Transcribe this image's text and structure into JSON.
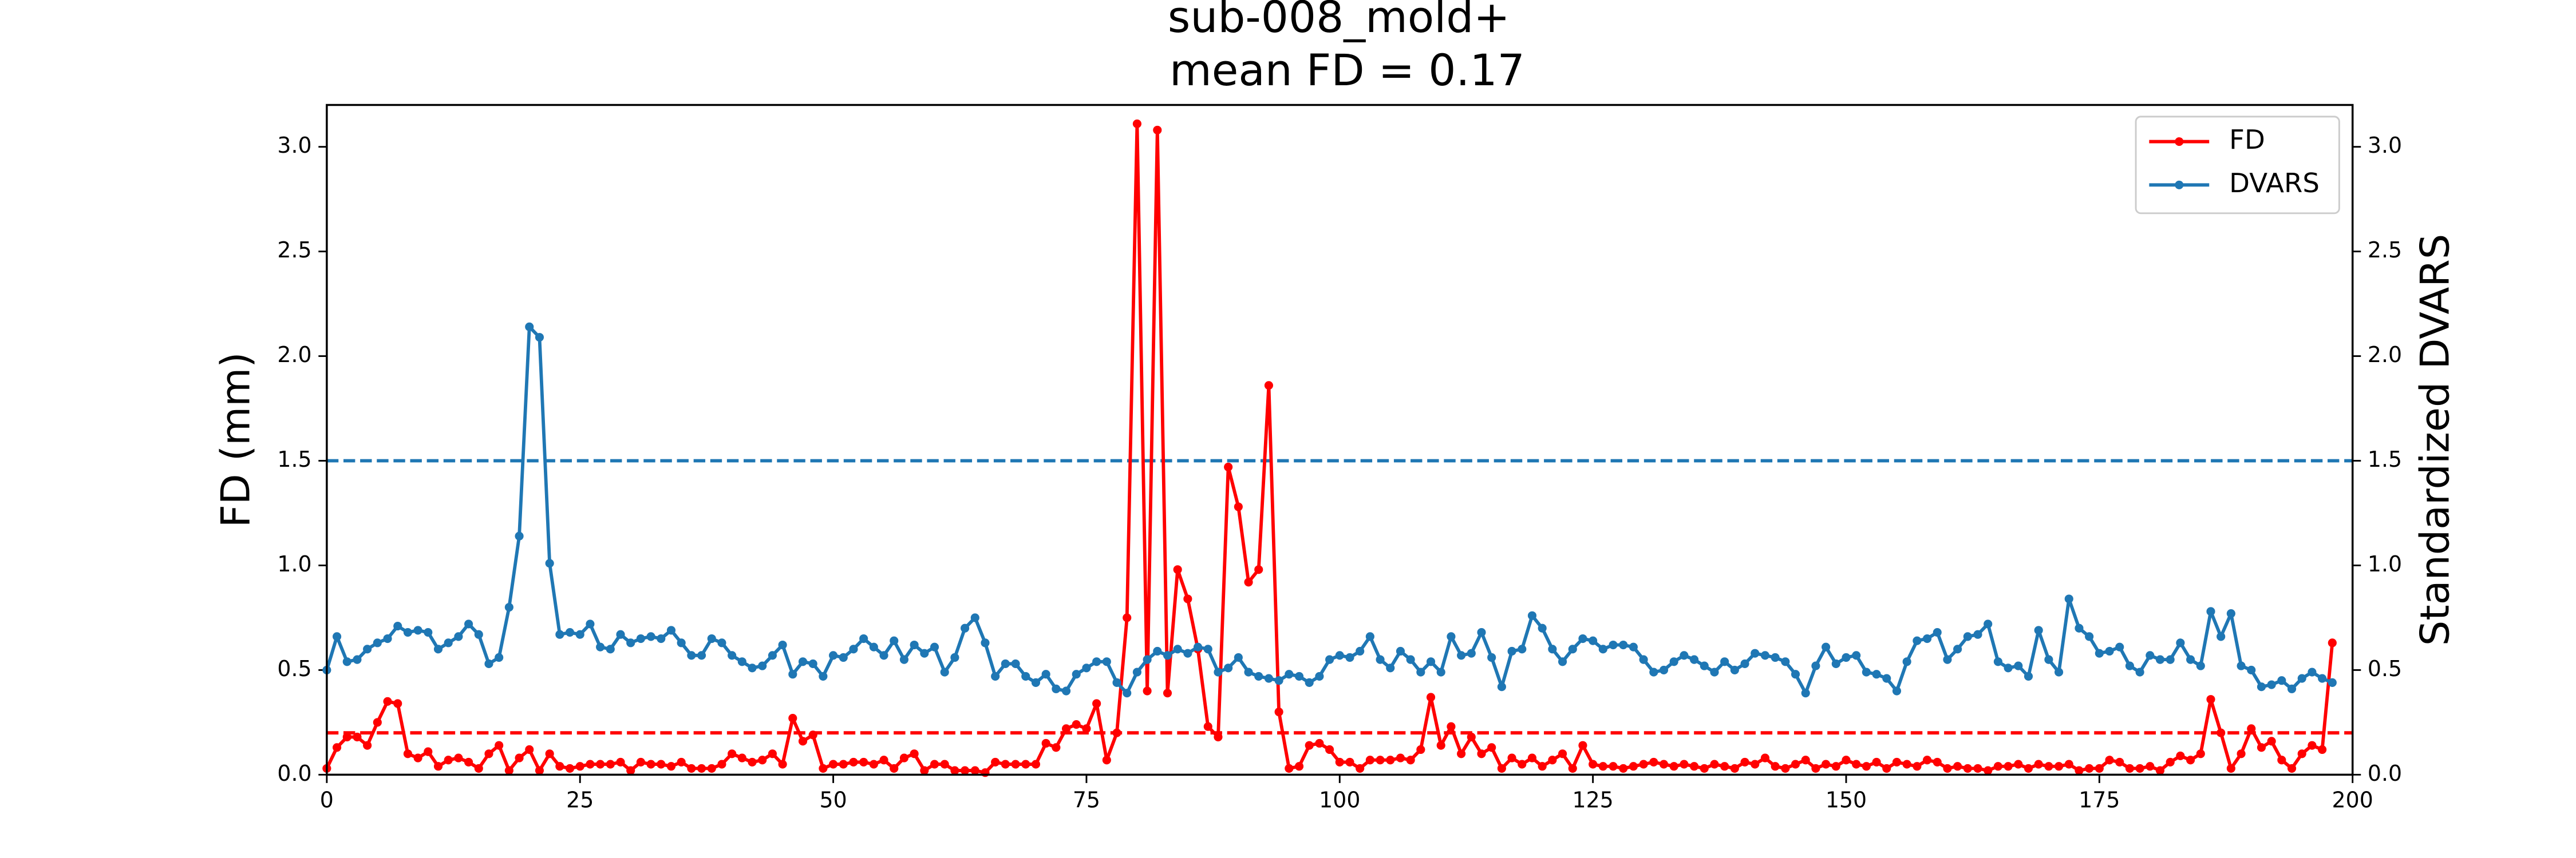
{
  "chart_data": {
    "type": "line",
    "title": "sub-008_mold+",
    "subtitle": "mean FD = 0.17",
    "ylabel": "FD (mm)",
    "y2label": "Standardized DVARS",
    "x": [
      0,
      1,
      2,
      3,
      4,
      5,
      6,
      7,
      8,
      9,
      10,
      11,
      12,
      13,
      14,
      15,
      16,
      17,
      18,
      19,
      20,
      21,
      22,
      23,
      24,
      25,
      26,
      27,
      28,
      29,
      30,
      31,
      32,
      33,
      34,
      35,
      36,
      37,
      38,
      39,
      40,
      41,
      42,
      43,
      44,
      45,
      46,
      47,
      48,
      49,
      50,
      51,
      52,
      53,
      54,
      55,
      56,
      57,
      58,
      59,
      60,
      61,
      62,
      63,
      64,
      65,
      66,
      67,
      68,
      69,
      70,
      71,
      72,
      73,
      74,
      75,
      76,
      77,
      78,
      79,
      80,
      81,
      82,
      83,
      84,
      85,
      86,
      87,
      88,
      89,
      90,
      91,
      92,
      93,
      94,
      95,
      96,
      97,
      98,
      99,
      100,
      101,
      102,
      103,
      104,
      105,
      106,
      107,
      108,
      109,
      110,
      111,
      112,
      113,
      114,
      115,
      116,
      117,
      118,
      119,
      120,
      121,
      122,
      123,
      124,
      125,
      126,
      127,
      128,
      129,
      130,
      131,
      132,
      133,
      134,
      135,
      136,
      137,
      138,
      139,
      140,
      141,
      142,
      143,
      144,
      145,
      146,
      147,
      148,
      149,
      150,
      151,
      152,
      153,
      154,
      155,
      156,
      157,
      158,
      159,
      160,
      161,
      162,
      163,
      164,
      165,
      166,
      167,
      168,
      169,
      170,
      171,
      172,
      173,
      174,
      175,
      176,
      177,
      178,
      179,
      180,
      181,
      182,
      183,
      184,
      185,
      186,
      187,
      188,
      189,
      190,
      191,
      192,
      193,
      194,
      195,
      196,
      197,
      198
    ],
    "series": [
      {
        "name": "FD",
        "color": "#ff0000",
        "axis": "y",
        "values": [
          0.03,
          0.13,
          0.18,
          0.18,
          0.14,
          0.25,
          0.35,
          0.34,
          0.1,
          0.08,
          0.11,
          0.04,
          0.07,
          0.08,
          0.06,
          0.03,
          0.1,
          0.14,
          0.02,
          0.08,
          0.12,
          0.02,
          0.1,
          0.04,
          0.03,
          0.04,
          0.05,
          0.05,
          0.05,
          0.06,
          0.02,
          0.06,
          0.05,
          0.05,
          0.04,
          0.06,
          0.03,
          0.03,
          0.03,
          0.05,
          0.1,
          0.08,
          0.06,
          0.07,
          0.1,
          0.05,
          0.27,
          0.16,
          0.19,
          0.03,
          0.05,
          0.05,
          0.06,
          0.06,
          0.05,
          0.07,
          0.03,
          0.08,
          0.1,
          0.02,
          0.05,
          0.05,
          0.02,
          0.02,
          0.02,
          0.01,
          0.06,
          0.05,
          0.05,
          0.05,
          0.05,
          0.15,
          0.13,
          0.22,
          0.24,
          0.22,
          0.34,
          0.07,
          0.2,
          0.75,
          3.11,
          0.4,
          3.08,
          0.39,
          0.98,
          0.84,
          0.6,
          0.23,
          0.18,
          1.47,
          1.28,
          0.92,
          0.98,
          1.86,
          0.3,
          0.03,
          0.04,
          0.14,
          0.15,
          0.12,
          0.06,
          0.06,
          0.03,
          0.07,
          0.07,
          0.07,
          0.08,
          0.07,
          0.12,
          0.37,
          0.14,
          0.23,
          0.1,
          0.18,
          0.1,
          0.13,
          0.03,
          0.08,
          0.05,
          0.08,
          0.04,
          0.07,
          0.1,
          0.03,
          0.14,
          0.05,
          0.04,
          0.04,
          0.03,
          0.04,
          0.05,
          0.06,
          0.05,
          0.04,
          0.05,
          0.04,
          0.03,
          0.05,
          0.04,
          0.03,
          0.06,
          0.05,
          0.08,
          0.04,
          0.03,
          0.05,
          0.07,
          0.03,
          0.05,
          0.04,
          0.07,
          0.05,
          0.04,
          0.06,
          0.03,
          0.06,
          0.05,
          0.04,
          0.07,
          0.06,
          0.03,
          0.04,
          0.03,
          0.03,
          0.02,
          0.04,
          0.04,
          0.05,
          0.03,
          0.05,
          0.04,
          0.04,
          0.05,
          0.02,
          0.03,
          0.03,
          0.07,
          0.06,
          0.03,
          0.03,
          0.04,
          0.02,
          0.06,
          0.09,
          0.07,
          0.1,
          0.36,
          0.2,
          0.03,
          0.1,
          0.22,
          0.13,
          0.16,
          0.07,
          0.03,
          0.1,
          0.14,
          0.12,
          0.63
        ]
      },
      {
        "name": "DVARS",
        "color": "#1f77b4",
        "axis": "y2",
        "values": [
          0.5,
          0.66,
          0.54,
          0.55,
          0.6,
          0.63,
          0.65,
          0.71,
          0.68,
          0.69,
          0.68,
          0.6,
          0.63,
          0.66,
          0.72,
          0.67,
          0.53,
          0.56,
          0.8,
          1.14,
          2.14,
          2.09,
          1.01,
          0.67,
          0.68,
          0.67,
          0.72,
          0.61,
          0.6,
          0.67,
          0.63,
          0.65,
          0.66,
          0.65,
          0.69,
          0.63,
          0.57,
          0.57,
          0.65,
          0.63,
          0.57,
          0.54,
          0.51,
          0.52,
          0.57,
          0.62,
          0.48,
          0.54,
          0.53,
          0.47,
          0.57,
          0.56,
          0.6,
          0.65,
          0.61,
          0.57,
          0.64,
          0.55,
          0.62,
          0.58,
          0.61,
          0.49,
          0.56,
          0.7,
          0.75,
          0.63,
          0.47,
          0.53,
          0.53,
          0.47,
          0.44,
          0.48,
          0.41,
          0.4,
          0.48,
          0.51,
          0.54,
          0.54,
          0.44,
          0.39,
          0.49,
          0.55,
          0.59,
          0.57,
          0.6,
          0.58,
          0.61,
          0.6,
          0.49,
          0.51,
          0.56,
          0.49,
          0.47,
          0.46,
          0.45,
          0.48,
          0.47,
          0.44,
          0.47,
          0.55,
          0.57,
          0.56,
          0.59,
          0.66,
          0.55,
          0.51,
          0.59,
          0.55,
          0.49,
          0.54,
          0.49,
          0.66,
          0.57,
          0.58,
          0.68,
          0.56,
          0.42,
          0.59,
          0.6,
          0.76,
          0.7,
          0.6,
          0.54,
          0.6,
          0.65,
          0.64,
          0.6,
          0.62,
          0.62,
          0.61,
          0.55,
          0.49,
          0.5,
          0.54,
          0.57,
          0.55,
          0.52,
          0.49,
          0.54,
          0.5,
          0.53,
          0.58,
          0.57,
          0.56,
          0.54,
          0.48,
          0.39,
          0.52,
          0.61,
          0.53,
          0.56,
          0.57,
          0.49,
          0.48,
          0.46,
          0.4,
          0.54,
          0.64,
          0.65,
          0.68,
          0.55,
          0.6,
          0.66,
          0.67,
          0.72,
          0.54,
          0.51,
          0.52,
          0.47,
          0.69,
          0.55,
          0.49,
          0.84,
          0.7,
          0.66,
          0.58,
          0.59,
          0.61,
          0.52,
          0.49,
          0.57,
          0.55,
          0.55,
          0.63,
          0.55,
          0.52,
          0.78,
          0.66,
          0.77,
          0.52,
          0.5,
          0.42,
          0.43,
          0.45,
          0.41,
          0.46,
          0.49,
          0.46,
          0.44
        ]
      }
    ],
    "hlines": [
      {
        "value": 0.2,
        "axis": "y",
        "color": "#ff0000"
      },
      {
        "value": 1.5,
        "axis": "y2",
        "color": "#1f77b4"
      }
    ],
    "xlim": [
      0,
      200
    ],
    "xticks": [
      0,
      25,
      50,
      75,
      100,
      125,
      150,
      175,
      200
    ],
    "ylim": [
      0,
      3.2
    ],
    "yticks": [
      {
        "value": 0,
        "label": "0.0"
      },
      0.5,
      {
        "value": 1,
        "label": "1.0"
      },
      1.5,
      {
        "value": 2,
        "label": "2.0"
      },
      2.5,
      {
        "value": 3,
        "label": "3.0"
      }
    ],
    "y2lim": [
      0,
      3.2
    ],
    "y2ticks": [
      {
        "value": 0,
        "label": "0.0"
      },
      0.5,
      {
        "value": 1,
        "label": "1.0"
      },
      1.5,
      {
        "value": 2,
        "label": "2.0"
      },
      2.5,
      {
        "value": 3,
        "label": "3.0"
      }
    ],
    "legend": "upper right"
  }
}
